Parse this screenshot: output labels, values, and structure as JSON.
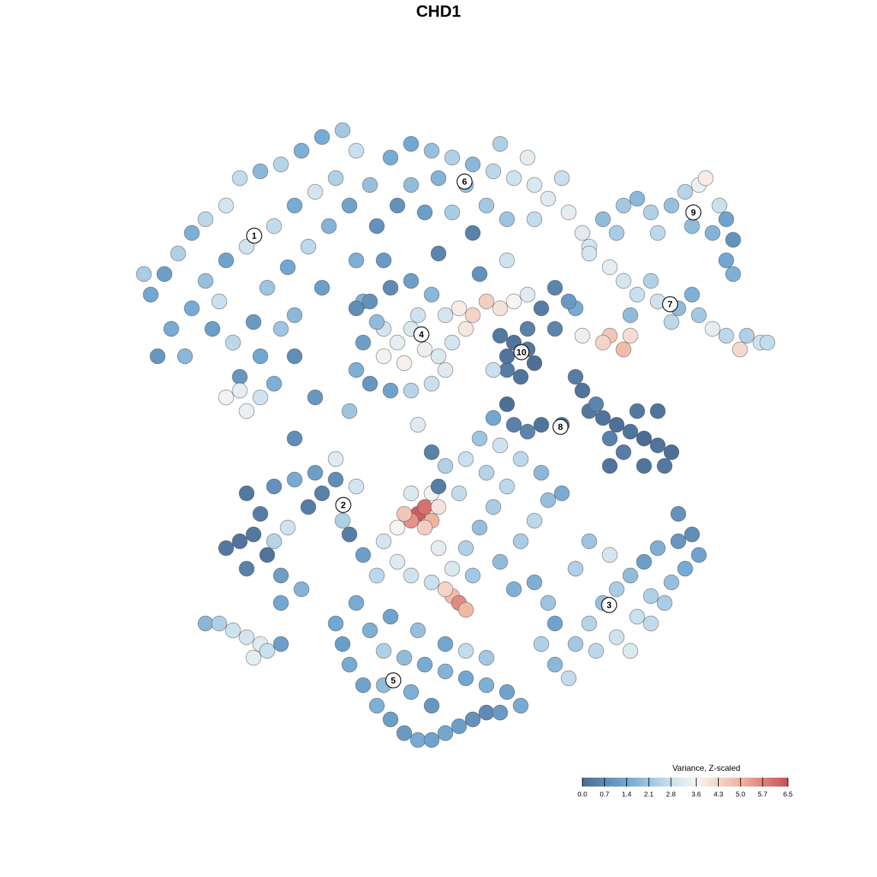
{
  "chart_data": {
    "type": "scatter",
    "title": "CHD1",
    "xlim": [
      0,
      100
    ],
    "ylim": [
      0,
      100
    ],
    "x": [
      6,
      8,
      10,
      12,
      14,
      17,
      19,
      22,
      25,
      28,
      31,
      34,
      36,
      33,
      30,
      27,
      24,
      20,
      17,
      14,
      12,
      15,
      18,
      21,
      23,
      26,
      29,
      32,
      35,
      38,
      39,
      36,
      31,
      27,
      22,
      19,
      24,
      17,
      19,
      20,
      22,
      9,
      7,
      11,
      5,
      27,
      37,
      40,
      16,
      25,
      41,
      44,
      47,
      50,
      53,
      56,
      59,
      62,
      64,
      67,
      69,
      70,
      66,
      61,
      57,
      52,
      48,
      44,
      46,
      50,
      55,
      58,
      62,
      42,
      53,
      48,
      54,
      58,
      72,
      75,
      77,
      79,
      82,
      84,
      86,
      87,
      89,
      90,
      91,
      88,
      85,
      80,
      74,
      90,
      91,
      70,
      73,
      75,
      77,
      80,
      83,
      86,
      88,
      90,
      93,
      95,
      96,
      85,
      79,
      76,
      82,
      92,
      73,
      75,
      72,
      76,
      69,
      68,
      65,
      67,
      36,
      37,
      36,
      38,
      41,
      44,
      47,
      49,
      50,
      49,
      47,
      44,
      41,
      38,
      40,
      42,
      44,
      46,
      43,
      40,
      45,
      39,
      48,
      51,
      53,
      55,
      57,
      59,
      61,
      52,
      57,
      59,
      61,
      62,
      60,
      58,
      61,
      63,
      65,
      58,
      68,
      69,
      70,
      72,
      74,
      76,
      78,
      80,
      82,
      81,
      78,
      75,
      73,
      77,
      80,
      71,
      66,
      63,
      61,
      59,
      56,
      58,
      73,
      17,
      19,
      21,
      23,
      20,
      25,
      24,
      26,
      22,
      20,
      24,
      27,
      30,
      33,
      31,
      29,
      34,
      33,
      36,
      35,
      25,
      28,
      14,
      16,
      18,
      20,
      22,
      21,
      23,
      25,
      40,
      42,
      44,
      47,
      50,
      52,
      54,
      56,
      58,
      55,
      52,
      49,
      51,
      48,
      53,
      57,
      60,
      62,
      64,
      66,
      63,
      60,
      57,
      54,
      59,
      39,
      37,
      50,
      51,
      52,
      49,
      47,
      44,
      62,
      64,
      65,
      63,
      65,
      67,
      68,
      70,
      72,
      74,
      76,
      78,
      80,
      83,
      85,
      86,
      84,
      82,
      79,
      77,
      74,
      71,
      76,
      79,
      81,
      68,
      70,
      73,
      83,
      33,
      34,
      35,
      37,
      39,
      41,
      43,
      45,
      47,
      49,
      51,
      53,
      55,
      57,
      60,
      58,
      55,
      52,
      49,
      46,
      43,
      40,
      38,
      41,
      45,
      49,
      44,
      47,
      40,
      36,
      52,
      55,
      27,
      30,
      47,
      45,
      35,
      48,
      56,
      45,
      46,
      44,
      47,
      43,
      46,
      42,
      48
    ],
    "y": [
      69,
      72,
      75,
      78,
      80,
      82,
      86,
      87,
      88,
      90,
      92,
      93,
      90,
      86,
      84,
      82,
      79,
      76,
      74,
      71,
      67,
      64,
      62,
      65,
      70,
      73,
      76,
      79,
      82,
      85,
      79,
      74,
      70,
      66,
      60,
      57,
      56,
      54,
      55,
      52,
      54,
      64,
      60,
      60,
      72,
      60,
      68,
      74,
      68,
      64,
      89,
      91,
      90,
      89,
      88,
      87,
      86,
      85,
      83,
      81,
      78,
      76,
      86,
      89,
      91,
      85,
      86,
      85,
      81,
      81,
      82,
      80,
      80,
      82,
      78,
      75,
      72,
      74,
      80,
      82,
      83,
      81,
      82,
      84,
      85,
      86,
      82,
      80,
      77,
      78,
      79,
      78,
      78,
      74,
      72,
      75,
      73,
      71,
      69,
      68,
      67,
      66,
      64,
      63,
      63,
      62,
      62,
      69,
      71,
      66,
      65,
      61,
      63,
      61,
      62,
      63,
      63,
      67,
      70,
      68,
      67,
      62,
      58,
      56,
      55,
      55,
      56,
      58,
      62,
      66,
      69,
      71,
      70,
      68,
      64,
      62,
      64,
      61,
      59,
      60,
      66,
      65,
      60,
      67,
      66,
      68,
      67,
      68,
      69,
      64,
      63,
      62,
      61,
      59,
      57,
      58,
      64,
      67,
      64,
      60,
      57,
      55,
      52,
      51,
      50,
      49,
      48,
      47,
      46,
      44,
      44,
      46,
      48,
      52,
      52,
      53,
      50,
      50,
      49,
      50,
      51,
      53,
      44,
      32,
      33,
      34,
      31,
      29,
      28,
      33,
      35,
      37,
      40,
      41,
      42,
      43,
      42,
      40,
      38,
      36,
      45,
      41,
      34,
      24,
      26,
      21,
      21,
      20,
      19,
      18,
      16,
      17,
      18,
      33,
      30,
      28,
      27,
      29,
      32,
      35,
      38,
      41,
      43,
      45,
      44,
      40,
      32,
      28,
      30,
      33,
      36,
      39,
      40,
      43,
      45,
      47,
      48,
      26,
      28,
      31,
      25,
      24,
      23,
      26,
      40,
      40,
      27,
      24,
      21,
      18,
      15,
      13,
      18,
      21,
      24,
      26,
      28,
      30,
      32,
      33,
      34,
      31,
      29,
      27,
      25,
      22,
      19,
      17,
      17,
      21,
      24,
      29,
      33,
      31,
      37,
      21,
      18,
      15,
      12,
      9,
      7,
      5,
      4,
      4,
      5,
      6,
      7,
      8,
      8,
      9,
      11,
      12,
      13,
      14,
      15,
      16,
      17,
      20,
      22,
      20,
      18,
      11,
      9,
      12,
      24,
      17,
      16,
      48,
      54,
      46,
      50,
      52,
      41,
      58,
      37,
      38,
      36,
      36,
      37,
      35,
      35,
      38
    ],
    "values": [
      1.4,
      1.2,
      2.4,
      1.6,
      2.6,
      3.0,
      2.7,
      1.8,
      2.5,
      1.6,
      1.5,
      2.2,
      2.8,
      2.4,
      3.0,
      1.5,
      2.7,
      2.9,
      1.3,
      2.0,
      1.5,
      1.2,
      2.6,
      1.1,
      2.1,
      1.4,
      2.6,
      1.7,
      1.3,
      2.0,
      0.9,
      1.6,
      1.2,
      1.8,
      1.4,
      1.0,
      1.6,
      3.5,
      3.3,
      3.4,
      2.9,
      1.5,
      1.0,
      1.8,
      2.3,
      0.8,
      1.6,
      1.1,
      2.8,
      2.1,
      1.5,
      1.4,
      2.0,
      2.4,
      1.8,
      2.6,
      2.9,
      3.1,
      3.2,
      3.3,
      3.2,
      3.0,
      2.8,
      3.3,
      2.4,
      2.0,
      1.7,
      1.9,
      1.2,
      2.3,
      2.2,
      2.1,
      2.7,
      0.9,
      0.5,
      0.6,
      0.9,
      2.9,
      1.9,
      2.2,
      1.8,
      2.4,
      2.0,
      2.5,
      3.4,
      3.8,
      2.8,
      1.3,
      0.9,
      1.7,
      1.9,
      2.6,
      2.3,
      1.4,
      1.6,
      3.0,
      3.3,
      3.0,
      2.8,
      2.9,
      1.9,
      2.2,
      3.3,
      2.6,
      2.4,
      2.9,
      2.7,
      1.6,
      2.4,
      1.9,
      2.6,
      4.2,
      4.6,
      4.8,
      4.3,
      4.1,
      3.4,
      1.5,
      0.6,
      1.1,
      0.8,
      1.2,
      1.6,
      1.0,
      1.3,
      2.5,
      2.8,
      3.2,
      3.0,
      3.0,
      1.8,
      1.2,
      0.7,
      0.9,
      3.0,
      3.3,
      3.1,
      3.4,
      3.7,
      3.5,
      2.9,
      1.9,
      3.1,
      3.8,
      4.3,
      4.4,
      4.0,
      3.6,
      3.2,
      3.9,
      0.3,
      0.2,
      0.3,
      0.1,
      0.2,
      0.4,
      0.5,
      0.4,
      0.6,
      0.2,
      0.4,
      0.2,
      0.3,
      0.2,
      0.1,
      0.2,
      0.0,
      0.2,
      0.1,
      0.3,
      0.2,
      0.4,
      0.5,
      0.3,
      0.2,
      0.6,
      0.3,
      0.2,
      0.6,
      0.5,
      1.4,
      0.1,
      0.2,
      0.3,
      0.2,
      0.3,
      0.2,
      0.5,
      1.2,
      2.5,
      2.9,
      0.4,
      0.3,
      0.9,
      1.5,
      1.2,
      0.8,
      0.5,
      0.4,
      2.4,
      3.2,
      3.0,
      0.4,
      1.4,
      1.7,
      1.8,
      2.4,
      2.9,
      3.0,
      3.2,
      3.3,
      2.8,
      1.2,
      3.0,
      3.2,
      2.9,
      2.8,
      3.1,
      2.4,
      2.0,
      2.3,
      2.6,
      2.5,
      2.8,
      2.4,
      2.7,
      3.3,
      2.2,
      1.9,
      2.3,
      2.6,
      2.0,
      1.5,
      1.8,
      2.6,
      2.9,
      2.1,
      1.6,
      2.6,
      1.2,
      4.8,
      5.6,
      4.9,
      4.3,
      3.5,
      3.1,
      1.6,
      2.1,
      1.3,
      2.4,
      1.8,
      2.7,
      2.2,
      2.5,
      2.0,
      2.3,
      1.9,
      1.2,
      1.6,
      1.0,
      0.8,
      1.3,
      1.5,
      2.0,
      2.4,
      2.8,
      2.9,
      2.6,
      3.1,
      2.7,
      2.3,
      2.4,
      2.1,
      3.0,
      0.9,
      1.4,
      1.2,
      1.5,
      1.3,
      1.6,
      1.2,
      1.1,
      1.5,
      1.3,
      1.4,
      1.2,
      0.9,
      0.7,
      1.1,
      1.5,
      1.3,
      1.6,
      1.4,
      1.7,
      1.5,
      1.9,
      2.4,
      1.6,
      1.3,
      2.0,
      1.4,
      1.6,
      1.0,
      1.9,
      1.5,
      2.7,
      2.2,
      0.8,
      1.0,
      0.5,
      3.2,
      2.1,
      0.4,
      2.8,
      6.3,
      6.0,
      5.5,
      5.0,
      4.6,
      4.4,
      3.6,
      4.0
    ],
    "clusters": [
      {
        "label": "1",
        "x": 21.1,
        "y": 77.6
      },
      {
        "label": "2",
        "x": 34.1,
        "y": 38.3
      },
      {
        "label": "3",
        "x": 72.9,
        "y": 23.7
      },
      {
        "label": "4",
        "x": 45.5,
        "y": 63.2
      },
      {
        "label": "5",
        "x": 41.4,
        "y": 12.7
      },
      {
        "label": "6",
        "x": 51.8,
        "y": 85.5
      },
      {
        "label": "7",
        "x": 81.8,
        "y": 67.6
      },
      {
        "label": "8",
        "x": 65.8,
        "y": 49.7
      },
      {
        "label": "9",
        "x": 85.2,
        "y": 81.0
      },
      {
        "label": "10",
        "x": 60.1,
        "y": 60.6
      }
    ],
    "colorbar": {
      "title": "Variance, Z-scaled",
      "lim": [
        0,
        6.5
      ],
      "ticks": [
        {
          "value": 0,
          "label": "0.0"
        },
        0.7,
        1.4,
        2.1,
        2.8,
        3.6,
        4.3,
        {
          "value": 5,
          "label": "5.0"
        },
        5.7,
        6.5
      ],
      "stops": [
        [
          0,
          "#4b6c94"
        ],
        [
          1.4,
          "#72a7d1"
        ],
        [
          2.8,
          "#c9e0ee"
        ],
        [
          3.6,
          "#f7f4f2"
        ],
        [
          5.0,
          "#f0b49e"
        ],
        [
          6.5,
          "#c9505c"
        ]
      ]
    }
  }
}
